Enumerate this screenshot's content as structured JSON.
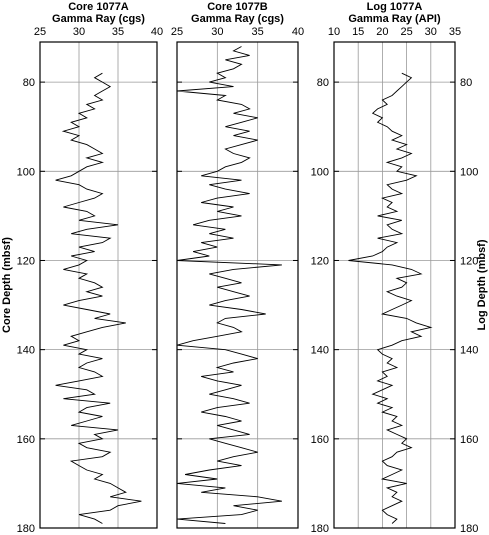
{
  "chart_data": [
    {
      "type": "line",
      "title": "Core 1077A",
      "xlabel": "Gamma Ray (cgs)",
      "ylabel": "Core Depth (mbsf)",
      "ylabel_side": "left",
      "ytick_labels_side": "left",
      "xlim": [
        25,
        40
      ],
      "xticks": [
        25,
        30,
        35,
        40
      ],
      "ylim": [
        71,
        180
      ],
      "yticks": [
        80,
        100,
        120,
        140,
        160,
        180
      ],
      "y_inverted": true,
      "grid": true,
      "color": "#000000",
      "x": [
        33,
        32,
        33,
        34,
        33,
        32,
        33,
        31,
        32,
        30,
        31,
        29,
        30,
        28,
        30,
        29,
        31,
        32,
        33,
        31,
        33,
        31,
        30,
        29,
        27,
        30,
        31,
        33,
        32,
        30,
        28,
        31,
        32,
        30,
        35,
        31,
        29,
        34,
        33,
        30,
        32,
        29,
        31,
        30,
        28,
        31,
        30,
        32,
        33,
        31,
        33,
        30,
        28,
        31,
        34,
        32,
        36,
        33,
        31,
        29,
        30,
        28,
        31,
        30,
        33,
        31,
        30,
        32,
        33,
        30,
        27,
        31,
        32,
        28,
        34,
        31,
        30,
        33,
        31,
        29,
        35,
        32,
        33,
        30,
        31,
        34,
        33,
        29,
        30,
        31,
        33,
        32,
        34,
        35,
        36,
        34,
        38,
        35,
        34,
        30,
        32,
        33
      ],
      "values": [
        78,
        79,
        80,
        81,
        82,
        83,
        84,
        85,
        86,
        87,
        88,
        89,
        90,
        91,
        92,
        93,
        94,
        95,
        96,
        97,
        98,
        99,
        100,
        101,
        102,
        103,
        104,
        105,
        106,
        107,
        108,
        109,
        110,
        111,
        112,
        113,
        114,
        115,
        116,
        117,
        118,
        119,
        120,
        121,
        122,
        123,
        124,
        125,
        126,
        127,
        128,
        129,
        130,
        131,
        132,
        133,
        134,
        135,
        136,
        137,
        138,
        139,
        140,
        141,
        142,
        143,
        144,
        145,
        146,
        147,
        148,
        149,
        150,
        151,
        152,
        153,
        154,
        155,
        156,
        157,
        158,
        159,
        160,
        161,
        162,
        163,
        164,
        165,
        166,
        167,
        168,
        169,
        170,
        171,
        172,
        173,
        174,
        175,
        176,
        177,
        178,
        179
      ]
    },
    {
      "type": "line",
      "title": "Core 1077B",
      "xlabel": "Gamma Ray (cgs)",
      "ytick_labels_side": "none",
      "xlim": [
        25,
        40
      ],
      "xticks": [
        25,
        30,
        35,
        40
      ],
      "ylim": [
        71,
        180
      ],
      "yticks": [
        80,
        100,
        120,
        140,
        160,
        180
      ],
      "y_inverted": true,
      "grid": true,
      "color": "#000000",
      "x": [
        33,
        32,
        34,
        31,
        33,
        32,
        30,
        31,
        29,
        32,
        25,
        31,
        30,
        33,
        34,
        32,
        35,
        33,
        31,
        34,
        32,
        35,
        33,
        31,
        32,
        34,
        33,
        31,
        30,
        28,
        33,
        29,
        31,
        34,
        30,
        28,
        32,
        30,
        33,
        29,
        27,
        31,
        29,
        32,
        28,
        30,
        27,
        29,
        25,
        38,
        32,
        29,
        31,
        33,
        30,
        32,
        34,
        31,
        29,
        33,
        36,
        31,
        30,
        32,
        33,
        30,
        27,
        25,
        31,
        33,
        35,
        32,
        30,
        32,
        28,
        30,
        33,
        31,
        29,
        32,
        34,
        30,
        28,
        31,
        33,
        30,
        32,
        34,
        29,
        31,
        33,
        35,
        32,
        30,
        33,
        29,
        26,
        30,
        25,
        31,
        28,
        35,
        38,
        32,
        35,
        33,
        25,
        31
      ],
      "values": [
        72,
        73,
        74,
        75,
        76,
        77,
        78,
        79,
        80,
        81,
        82,
        83,
        84,
        85,
        86,
        87,
        88,
        89,
        90,
        91,
        92,
        93,
        94,
        95,
        96,
        97,
        98,
        99,
        100,
        101,
        102,
        103,
        104,
        105,
        106,
        107,
        108,
        109,
        110,
        111,
        112,
        113,
        114,
        115,
        116,
        117,
        118,
        119,
        120,
        121,
        122,
        123,
        124,
        125,
        126,
        127,
        128,
        129,
        130,
        131,
        132,
        133,
        134,
        135,
        136,
        137,
        138,
        139,
        140,
        141,
        142,
        143,
        144,
        145,
        146,
        147,
        148,
        149,
        150,
        151,
        152,
        153,
        154,
        155,
        156,
        157,
        158,
        159,
        160,
        161,
        162,
        163,
        164,
        165,
        166,
        167,
        168,
        169,
        170,
        171,
        172,
        173,
        174,
        175,
        176,
        177,
        178,
        179
      ]
    },
    {
      "type": "line",
      "title": "Log 1077A",
      "xlabel": "Gamma Ray (API)",
      "ylabel": "Log Depth (mbsf)",
      "ylabel_side": "right",
      "ytick_labels_side": "both",
      "xlim": [
        10,
        35
      ],
      "xticks": [
        10,
        15,
        20,
        25,
        30,
        35
      ],
      "ylim": [
        71,
        180
      ],
      "yticks": [
        80,
        100,
        120,
        140,
        160,
        180
      ],
      "y_inverted": true,
      "grid": true,
      "color": "#000000",
      "x": [
        24,
        26,
        25,
        24,
        23,
        22,
        20,
        21,
        19,
        18,
        20,
        19,
        21,
        22,
        24,
        22,
        25,
        23,
        26,
        24,
        21,
        24,
        23,
        27,
        25,
        21,
        22,
        24,
        20,
        22,
        21,
        23,
        19,
        24,
        21,
        22,
        24,
        19,
        23,
        21,
        20,
        18,
        13,
        22,
        26,
        28,
        23,
        25,
        24,
        21,
        23,
        26,
        24,
        22,
        20,
        25,
        27,
        30,
        26,
        28,
        24,
        22,
        19,
        20,
        22,
        21,
        23,
        20,
        21,
        19,
        22,
        20,
        18,
        21,
        19,
        22,
        20,
        23,
        22,
        24,
        21,
        23,
        25,
        24,
        26,
        23,
        22,
        20,
        21,
        24,
        22,
        20,
        25,
        21,
        23,
        22,
        24,
        22,
        20,
        21,
        23,
        22
      ],
      "values": [
        78,
        79,
        80,
        81,
        82,
        83,
        84,
        85,
        86,
        87,
        88,
        89,
        90,
        91,
        92,
        93,
        94,
        95,
        96,
        97,
        98,
        99,
        100,
        101,
        102,
        103,
        104,
        105,
        106,
        107,
        108,
        109,
        110,
        111,
        112,
        113,
        114,
        115,
        116,
        117,
        118,
        119,
        120,
        121,
        122,
        123,
        124,
        125,
        126,
        127,
        128,
        129,
        130,
        131,
        132,
        133,
        134,
        135,
        136,
        137,
        138,
        139,
        140,
        141,
        142,
        143,
        144,
        145,
        146,
        147,
        148,
        149,
        150,
        151,
        152,
        153,
        154,
        155,
        156,
        157,
        158,
        159,
        160,
        161,
        162,
        163,
        164,
        165,
        166,
        167,
        168,
        169,
        170,
        171,
        172,
        173,
        174,
        175,
        176,
        177,
        178,
        179
      ]
    }
  ]
}
